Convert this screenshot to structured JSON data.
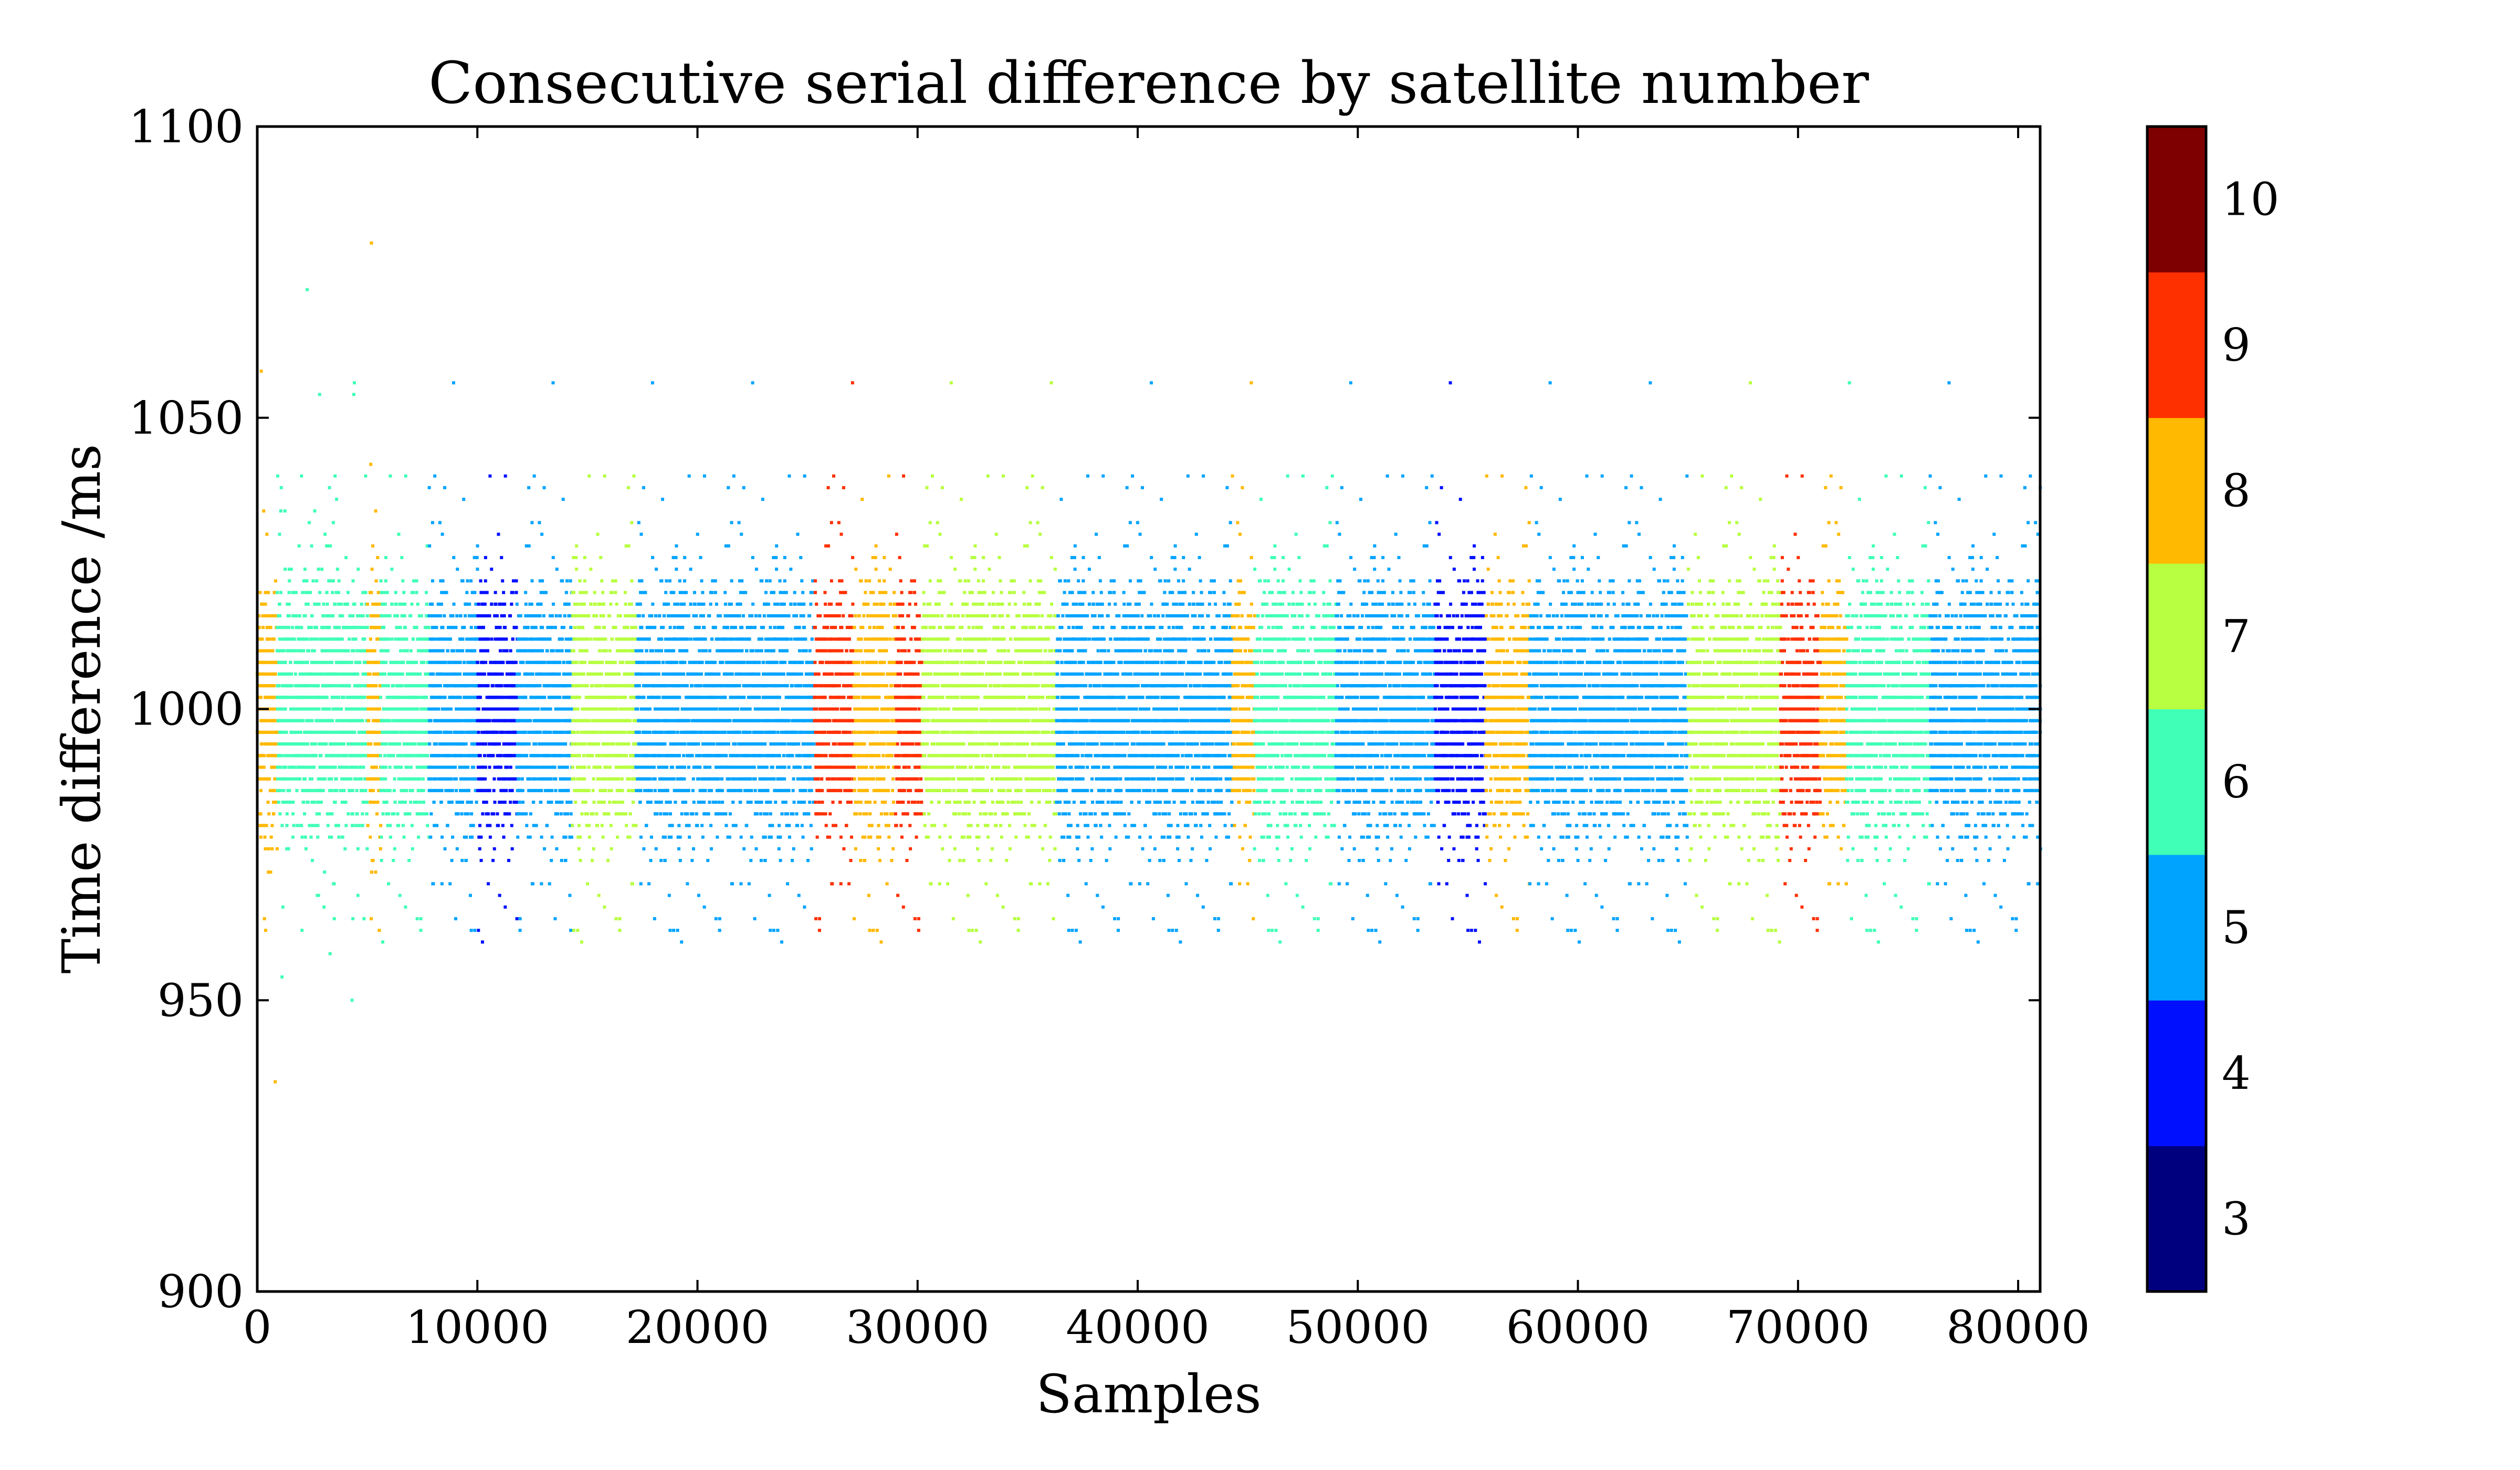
{
  "chart_data": {
    "type": "scatter",
    "title": "Consecutive serial difference by satellite number",
    "xlabel": "Samples",
    "ylabel": "Time difference /ms",
    "xlim": [
      0,
      81000
    ],
    "ylim": [
      900,
      1100
    ],
    "xticks": [
      0,
      10000,
      20000,
      30000,
      40000,
      50000,
      60000,
      70000,
      80000
    ],
    "yticks": [
      900,
      950,
      1000,
      1050,
      1100
    ],
    "grid": false,
    "colorbar": {
      "label": "",
      "levels": [
        3,
        4,
        5,
        6,
        7,
        8,
        9,
        10
      ],
      "colors": [
        "#00007f",
        "#0010ff",
        "#00a4ff",
        "#40ffb7",
        "#b7ff40",
        "#ffb900",
        "#ff3000",
        "#7f0000"
      ]
    },
    "color_segments": [
      {
        "x": [
          0,
          900
        ],
        "sat": 8
      },
      {
        "x": [
          900,
          5000
        ],
        "sat": 6
      },
      {
        "x": [
          5000,
          5600
        ],
        "sat": 8
      },
      {
        "x": [
          5600,
          7800
        ],
        "sat": 6
      },
      {
        "x": [
          7800,
          10000
        ],
        "sat": 5
      },
      {
        "x": [
          10000,
          11800
        ],
        "sat": 4
      },
      {
        "x": [
          11800,
          14300
        ],
        "sat": 5
      },
      {
        "x": [
          14300,
          17200
        ],
        "sat": 7
      },
      {
        "x": [
          17200,
          25300
        ],
        "sat": 5
      },
      {
        "x": [
          25300,
          27100
        ],
        "sat": 9
      },
      {
        "x": [
          27100,
          29000
        ],
        "sat": 8
      },
      {
        "x": [
          29000,
          30200
        ],
        "sat": 9
      },
      {
        "x": [
          30200,
          36300
        ],
        "sat": 7
      },
      {
        "x": [
          36300,
          44300
        ],
        "sat": 5
      },
      {
        "x": [
          44300,
          45300
        ],
        "sat": 8
      },
      {
        "x": [
          45300,
          49000
        ],
        "sat": 6
      },
      {
        "x": [
          49000,
          53500
        ],
        "sat": 5
      },
      {
        "x": [
          53500,
          55800
        ],
        "sat": 4
      },
      {
        "x": [
          55800,
          57800
        ],
        "sat": 8
      },
      {
        "x": [
          57800,
          65000
        ],
        "sat": 5
      },
      {
        "x": [
          65000,
          69200
        ],
        "sat": 7
      },
      {
        "x": [
          69200,
          71000
        ],
        "sat": 9
      },
      {
        "x": [
          71000,
          72200
        ],
        "sat": 8
      },
      {
        "x": [
          72200,
          76000
        ],
        "sat": 6
      },
      {
        "x": [
          76000,
          81000
        ],
        "sat": 5
      }
    ],
    "spread": {
      "core": [
        970,
        1030
      ],
      "outlier_range": [
        914,
        1085
      ]
    }
  }
}
